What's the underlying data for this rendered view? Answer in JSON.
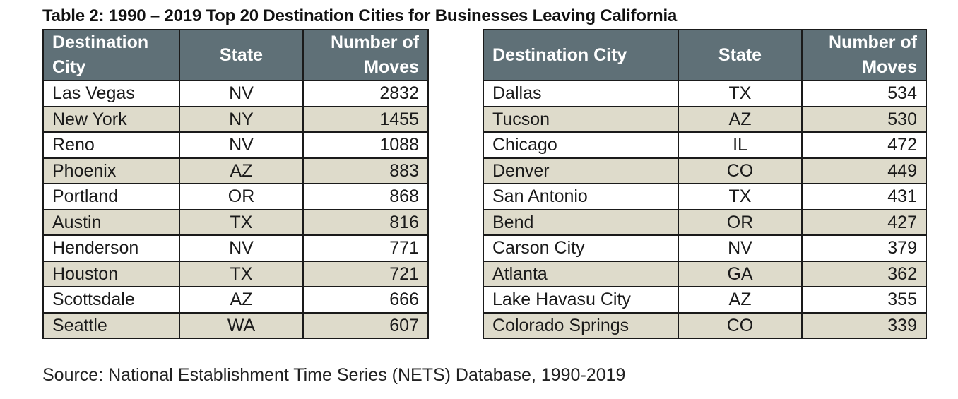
{
  "title": "Table 2:  1990 – 2019 Top 20 Destination Cities for Businesses Leaving California",
  "headers": {
    "city": "Destination City",
    "state": "State",
    "moves": "Number of Moves"
  },
  "left_rows": [
    {
      "city": "Las Vegas",
      "state": "NV",
      "moves": "2832"
    },
    {
      "city": "New York",
      "state": "NY",
      "moves": "1455"
    },
    {
      "city": "Reno",
      "state": "NV",
      "moves": "1088"
    },
    {
      "city": "Phoenix",
      "state": "AZ",
      "moves": "883"
    },
    {
      "city": "Portland",
      "state": "OR",
      "moves": "868"
    },
    {
      "city": "Austin",
      "state": "TX",
      "moves": "816"
    },
    {
      "city": "Henderson",
      "state": "NV",
      "moves": "771"
    },
    {
      "city": "Houston",
      "state": "TX",
      "moves": "721"
    },
    {
      "city": "Scottsdale",
      "state": "AZ",
      "moves": "666"
    },
    {
      "city": "Seattle",
      "state": "WA",
      "moves": "607"
    }
  ],
  "right_rows": [
    {
      "city": "Dallas",
      "state": "TX",
      "moves": "534"
    },
    {
      "city": "Tucson",
      "state": "AZ",
      "moves": "530"
    },
    {
      "city": "Chicago",
      "state": "IL",
      "moves": "472"
    },
    {
      "city": "Denver",
      "state": "CO",
      "moves": "449"
    },
    {
      "city": "San Antonio",
      "state": "TX",
      "moves": "431"
    },
    {
      "city": "Bend",
      "state": "OR",
      "moves": "427"
    },
    {
      "city": "Carson City",
      "state": "NV",
      "moves": "379"
    },
    {
      "city": "Atlanta",
      "state": "GA",
      "moves": "362"
    },
    {
      "city": "Lake Havasu City",
      "state": "AZ",
      "moves": "355"
    },
    {
      "city": "Colorado Springs",
      "state": "CO",
      "moves": "339"
    }
  ],
  "source": "Source: National Establishment Time Series (NETS) Database, 1990-2019"
}
